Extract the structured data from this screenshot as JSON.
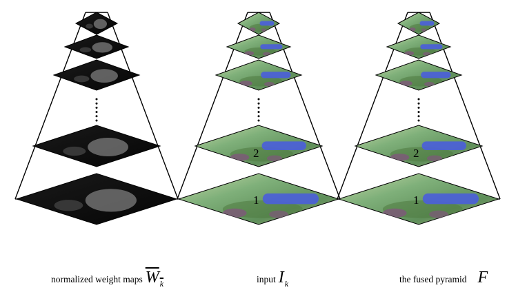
{
  "pyramids": [
    {
      "id": "weights",
      "caption_text": "normalized weight maps",
      "symbol": "W",
      "symbol_sub": "k",
      "symbol_overline": true,
      "level_labels": [
        "",
        ""
      ],
      "style": "dark"
    },
    {
      "id": "input",
      "caption_text": "input",
      "symbol": "I",
      "symbol_sub": "k",
      "symbol_overline": false,
      "level_labels": [
        "1",
        "2"
      ],
      "style": "photo"
    },
    {
      "id": "fused",
      "caption_text": "the fused pyramid",
      "symbol": "F",
      "symbol_sub": "",
      "symbol_overline": false,
      "level_labels": [
        "1",
        "2"
      ],
      "style": "photo"
    }
  ],
  "colors": {
    "line": "#000000",
    "weight_dark": "#0c0c0c",
    "weight_blob": "#707070",
    "photo_green": "#7fb07a",
    "photo_blue": "#4b5fd8",
    "photo_purple": "#7c5a78"
  }
}
